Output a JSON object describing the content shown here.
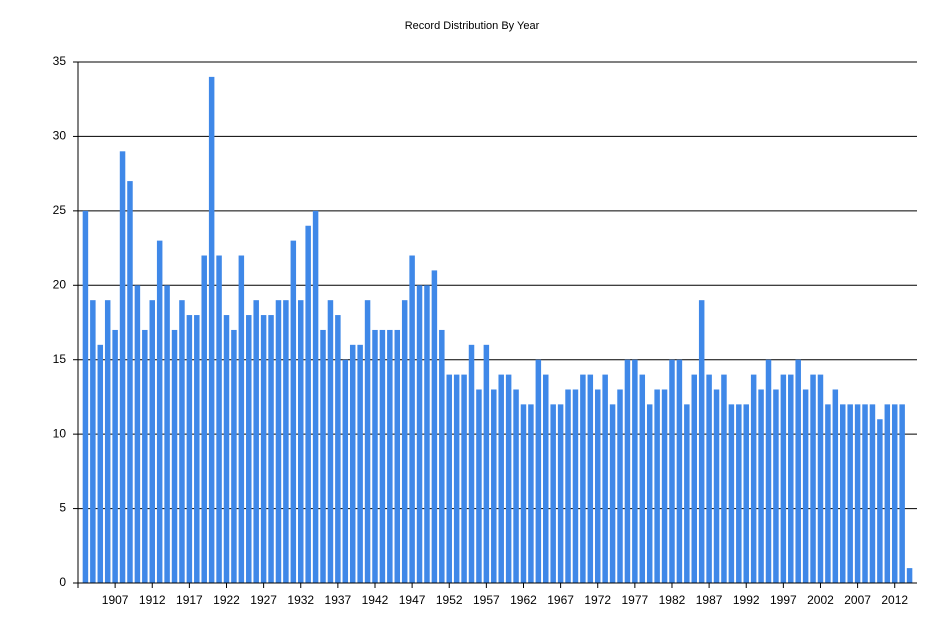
{
  "chart_data": {
    "type": "bar",
    "title": "Record Distribution By Year",
    "categories": [
      null,
      null,
      null,
      null,
      "1907",
      null,
      null,
      null,
      null,
      "1912",
      null,
      null,
      null,
      null,
      "1917",
      null,
      null,
      null,
      null,
      "1922",
      null,
      null,
      null,
      null,
      "1927",
      null,
      null,
      null,
      null,
      "1932",
      null,
      null,
      null,
      null,
      "1937",
      null,
      null,
      null,
      null,
      "1942",
      null,
      null,
      null,
      null,
      "1947",
      null,
      null,
      null,
      null,
      "1952",
      null,
      null,
      null,
      null,
      "1957",
      null,
      null,
      null,
      null,
      "1962",
      null,
      null,
      null,
      null,
      "1967",
      null,
      null,
      null,
      null,
      "1972",
      null,
      null,
      null,
      null,
      "1977",
      null,
      null,
      null,
      null,
      "1982",
      null,
      null,
      null,
      null,
      "1987",
      null,
      null,
      null,
      null,
      "1992",
      null,
      null,
      null,
      null,
      "1997",
      null,
      null,
      null,
      null,
      "2002",
      null,
      null,
      null,
      null,
      "2007",
      null,
      null,
      null,
      null,
      "2012",
      null,
      null
    ],
    "values": [
      25,
      19,
      16,
      19,
      17,
      29,
      27,
      20,
      17,
      19,
      23,
      20,
      17,
      19,
      18,
      18,
      22,
      34,
      22,
      18,
      17,
      22,
      18,
      19,
      18,
      18,
      19,
      19,
      23,
      19,
      24,
      25,
      17,
      19,
      18,
      15,
      16,
      16,
      19,
      17,
      17,
      17,
      17,
      19,
      22,
      20,
      20,
      21,
      17,
      14,
      14,
      14,
      16,
      13,
      16,
      13,
      14,
      14,
      13,
      12,
      12,
      15,
      14,
      12,
      12,
      13,
      13,
      14,
      14,
      13,
      14,
      12,
      13,
      15,
      15,
      14,
      12,
      13,
      13,
      15,
      15,
      12,
      14,
      19,
      14,
      13,
      14,
      12,
      12,
      12,
      14,
      13,
      15,
      13,
      14,
      14,
      15,
      13,
      14,
      14,
      12,
      13,
      12,
      12,
      12,
      12,
      12,
      11,
      12,
      12,
      12,
      1
    ],
    "color": "#3f88e8",
    "ylim": [
      0,
      35
    ],
    "yticks": [
      0,
      5,
      10,
      15,
      20,
      25,
      30,
      35
    ],
    "grid": true
  }
}
